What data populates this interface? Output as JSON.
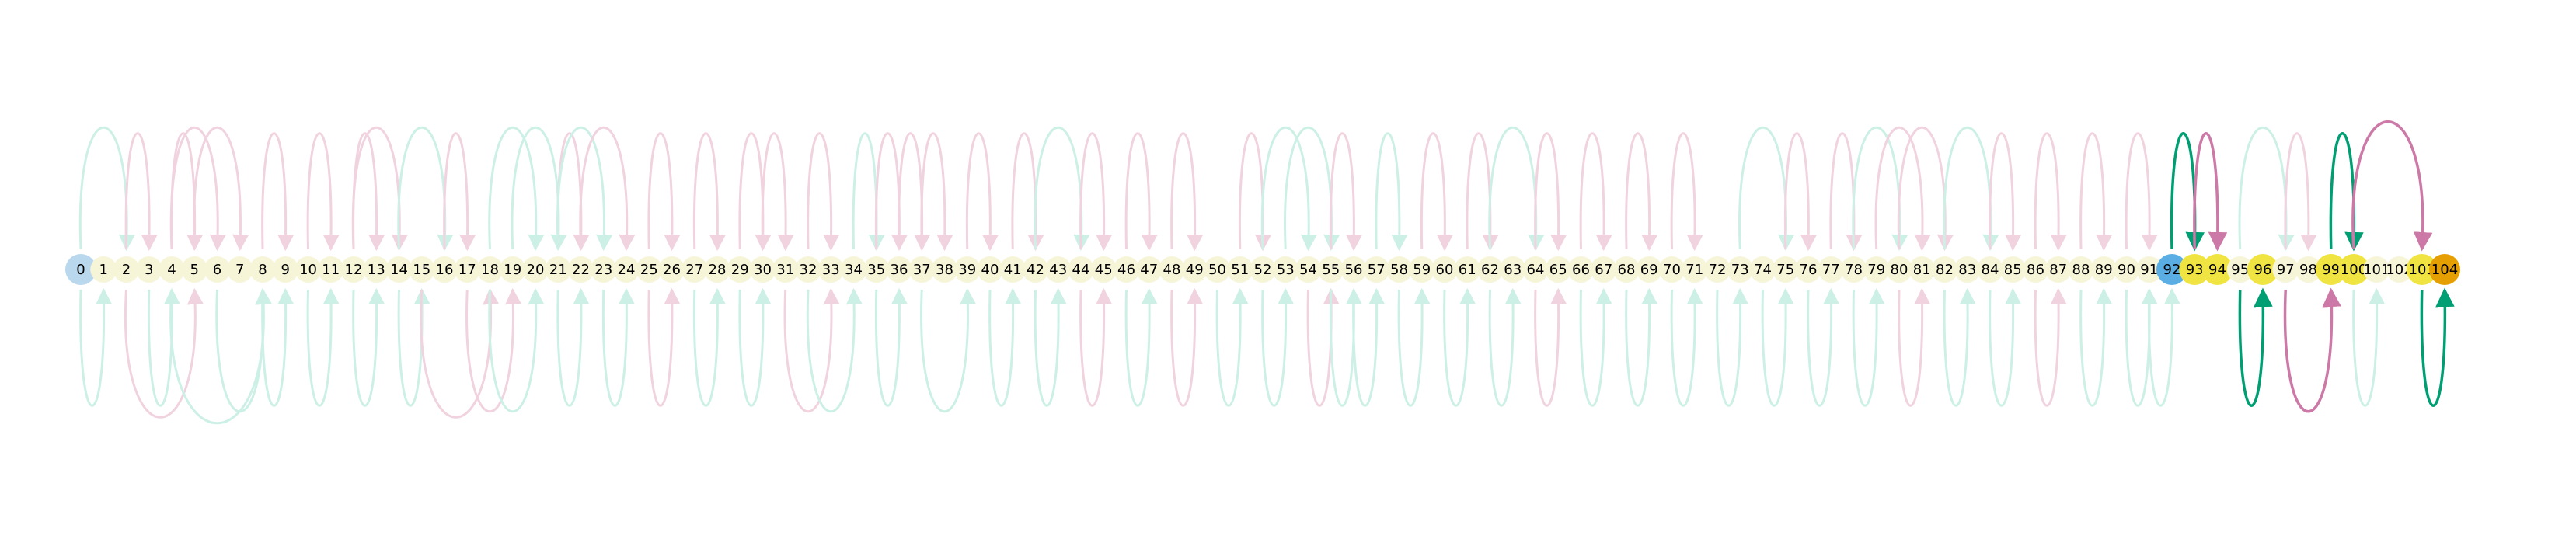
{
  "node_labels": [
    "0",
    "1",
    "2",
    "3",
    "4",
    "5",
    "6",
    "7",
    "8",
    "9",
    "10",
    "11",
    "12",
    "13",
    "14",
    "15",
    "16",
    "17",
    "18",
    "19",
    "20",
    "21",
    "22",
    "23",
    "24",
    "25",
    "26",
    "27",
    "28",
    "29",
    "30",
    "31",
    "32",
    "33",
    "34",
    "35",
    "36",
    "37",
    "38",
    "39",
    "40",
    "41",
    "42",
    "43",
    "44",
    "45",
    "46",
    "47",
    "48",
    "49",
    "50",
    "51",
    "52",
    "53",
    "54",
    "55",
    "56",
    "57",
    "58",
    "59",
    "60",
    "61",
    "62",
    "63",
    "64",
    "65",
    "66",
    "67",
    "68",
    "69",
    "70",
    "71",
    "72",
    "73",
    "74",
    "75",
    "76",
    "77",
    "78",
    "79",
    "80",
    "81",
    "82",
    "83",
    "84",
    "85",
    "86",
    "87",
    "88",
    "89",
    "90",
    "91",
    "92",
    "93",
    "94",
    "95",
    "96",
    "97",
    "98",
    "99",
    "100",
    "101",
    "102",
    "103",
    "104"
  ],
  "highlighted_nodes": {
    "0": "light-blue",
    "92": "blue",
    "93": "yellow",
    "94": "yellow",
    "96": "yellow",
    "99": "yellow",
    "100": "yellow",
    "103": "yellow",
    "104": "orange"
  },
  "colors": {
    "default_node": "#f7f5d8",
    "light-blue": "#b9d8ee",
    "blue": "#5aaee3",
    "yellow": "#f0e442",
    "orange": "#e69f00",
    "faded_green": "#cdf0e6",
    "faded_pink": "#f0d3df",
    "green": "#009e73",
    "pink": "#cc79a7"
  },
  "arcs_above": [
    {
      "from": 0,
      "to": 2,
      "c": "faded_green"
    },
    {
      "from": 2,
      "to": 3,
      "c": "faded_pink"
    },
    {
      "from": 4,
      "to": 5,
      "c": "faded_pink"
    },
    {
      "from": 4,
      "to": 6,
      "c": "faded_pink"
    },
    {
      "from": 5,
      "to": 7,
      "c": "faded_pink"
    },
    {
      "from": 8,
      "to": 9,
      "c": "faded_pink"
    },
    {
      "from": 10,
      "to": 11,
      "c": "faded_pink"
    },
    {
      "from": 12,
      "to": 13,
      "c": "faded_pink"
    },
    {
      "from": 12,
      "to": 14,
      "c": "faded_pink"
    },
    {
      "from": 14,
      "to": 16,
      "c": "faded_green"
    },
    {
      "from": 16,
      "to": 17,
      "c": "faded_pink"
    },
    {
      "from": 18,
      "to": 20,
      "c": "faded_green"
    },
    {
      "from": 19,
      "to": 21,
      "c": "faded_green"
    },
    {
      "from": 21,
      "to": 22,
      "c": "faded_pink"
    },
    {
      "from": 21,
      "to": 23,
      "c": "faded_green"
    },
    {
      "from": 22,
      "to": 24,
      "c": "faded_pink"
    },
    {
      "from": 25,
      "to": 26,
      "c": "faded_pink"
    },
    {
      "from": 27,
      "to": 28,
      "c": "faded_pink"
    },
    {
      "from": 29,
      "to": 30,
      "c": "faded_pink"
    },
    {
      "from": 30,
      "to": 31,
      "c": "faded_pink"
    },
    {
      "from": 32,
      "to": 33,
      "c": "faded_pink"
    },
    {
      "from": 34,
      "to": 35,
      "c": "faded_green"
    },
    {
      "from": 35,
      "to": 36,
      "c": "faded_pink"
    },
    {
      "from": 36,
      "to": 37,
      "c": "faded_pink"
    },
    {
      "from": 37,
      "to": 38,
      "c": "faded_pink"
    },
    {
      "from": 39,
      "to": 40,
      "c": "faded_pink"
    },
    {
      "from": 41,
      "to": 42,
      "c": "faded_pink"
    },
    {
      "from": 42,
      "to": 44,
      "c": "faded_green"
    },
    {
      "from": 44,
      "to": 45,
      "c": "faded_pink"
    },
    {
      "from": 46,
      "to": 47,
      "c": "faded_pink"
    },
    {
      "from": 48,
      "to": 49,
      "c": "faded_pink"
    },
    {
      "from": 51,
      "to": 52,
      "c": "faded_pink"
    },
    {
      "from": 52,
      "to": 54,
      "c": "faded_green"
    },
    {
      "from": 53,
      "to": 55,
      "c": "faded_green"
    },
    {
      "from": 55,
      "to": 56,
      "c": "faded_pink"
    },
    {
      "from": 57,
      "to": 58,
      "c": "faded_green"
    },
    {
      "from": 59,
      "to": 60,
      "c": "faded_pink"
    },
    {
      "from": 61,
      "to": 62,
      "c": "faded_pink"
    },
    {
      "from": 62,
      "to": 64,
      "c": "faded_green"
    },
    {
      "from": 64,
      "to": 65,
      "c": "faded_pink"
    },
    {
      "from": 66,
      "to": 67,
      "c": "faded_pink"
    },
    {
      "from": 68,
      "to": 69,
      "c": "faded_pink"
    },
    {
      "from": 70,
      "to": 71,
      "c": "faded_pink"
    },
    {
      "from": 73,
      "to": 75,
      "c": "faded_green"
    },
    {
      "from": 75,
      "to": 76,
      "c": "faded_pink"
    },
    {
      "from": 77,
      "to": 78,
      "c": "faded_pink"
    },
    {
      "from": 78,
      "to": 80,
      "c": "faded_green"
    },
    {
      "from": 79,
      "to": 81,
      "c": "faded_pink"
    },
    {
      "from": 80,
      "to": 82,
      "c": "faded_pink"
    },
    {
      "from": 82,
      "to": 84,
      "c": "faded_green"
    },
    {
      "from": 84,
      "to": 85,
      "c": "faded_pink"
    },
    {
      "from": 86,
      "to": 87,
      "c": "faded_pink"
    },
    {
      "from": 88,
      "to": 89,
      "c": "faded_pink"
    },
    {
      "from": 90,
      "to": 91,
      "c": "faded_pink"
    },
    {
      "from": 95,
      "to": 97,
      "c": "faded_green"
    },
    {
      "from": 97,
      "to": 98,
      "c": "faded_pink"
    },
    {
      "from": 92,
      "to": 93,
      "c": "green"
    },
    {
      "from": 93,
      "to": 94,
      "c": "pink"
    },
    {
      "from": 99,
      "to": 100,
      "c": "green"
    },
    {
      "from": 100,
      "to": 103,
      "c": "pink"
    }
  ],
  "arcs_below": [
    {
      "from": 0,
      "to": 1,
      "c": "faded_green"
    },
    {
      "from": 2,
      "to": 5,
      "c": "faded_pink"
    },
    {
      "from": 3,
      "to": 4,
      "c": "faded_green"
    },
    {
      "from": 4,
      "to": 8,
      "c": "faded_green"
    },
    {
      "from": 6,
      "to": 8,
      "c": "faded_green"
    },
    {
      "from": 8,
      "to": 9,
      "c": "faded_green"
    },
    {
      "from": 10,
      "to": 11,
      "c": "faded_green"
    },
    {
      "from": 12,
      "to": 13,
      "c": "faded_green"
    },
    {
      "from": 14,
      "to": 15,
      "c": "faded_green"
    },
    {
      "from": 15,
      "to": 18,
      "c": "faded_pink"
    },
    {
      "from": 17,
      "to": 19,
      "c": "faded_pink"
    },
    {
      "from": 18,
      "to": 20,
      "c": "faded_green"
    },
    {
      "from": 21,
      "to": 22,
      "c": "faded_green"
    },
    {
      "from": 23,
      "to": 24,
      "c": "faded_green"
    },
    {
      "from": 25,
      "to": 26,
      "c": "faded_pink"
    },
    {
      "from": 27,
      "to": 28,
      "c": "faded_green"
    },
    {
      "from": 29,
      "to": 30,
      "c": "faded_green"
    },
    {
      "from": 31,
      "to": 33,
      "c": "faded_pink"
    },
    {
      "from": 32,
      "to": 34,
      "c": "faded_green"
    },
    {
      "from": 35,
      "to": 36,
      "c": "faded_green"
    },
    {
      "from": 37,
      "to": 39,
      "c": "faded_green"
    },
    {
      "from": 40,
      "to": 41,
      "c": "faded_green"
    },
    {
      "from": 42,
      "to": 43,
      "c": "faded_green"
    },
    {
      "from": 44,
      "to": 45,
      "c": "faded_pink"
    },
    {
      "from": 46,
      "to": 47,
      "c": "faded_green"
    },
    {
      "from": 48,
      "to": 49,
      "c": "faded_pink"
    },
    {
      "from": 50,
      "to": 51,
      "c": "faded_green"
    },
    {
      "from": 52,
      "to": 53,
      "c": "faded_green"
    },
    {
      "from": 54,
      "to": 55,
      "c": "faded_pink"
    },
    {
      "from": 55,
      "to": 56,
      "c": "faded_green"
    },
    {
      "from": 56,
      "to": 57,
      "c": "faded_green"
    },
    {
      "from": 58,
      "to": 59,
      "c": "faded_green"
    },
    {
      "from": 60,
      "to": 61,
      "c": "faded_green"
    },
    {
      "from": 62,
      "to": 63,
      "c": "faded_green"
    },
    {
      "from": 64,
      "to": 65,
      "c": "faded_pink"
    },
    {
      "from": 66,
      "to": 67,
      "c": "faded_green"
    },
    {
      "from": 68,
      "to": 69,
      "c": "faded_green"
    },
    {
      "from": 70,
      "to": 71,
      "c": "faded_green"
    },
    {
      "from": 72,
      "to": 73,
      "c": "faded_green"
    },
    {
      "from": 74,
      "to": 75,
      "c": "faded_green"
    },
    {
      "from": 76,
      "to": 77,
      "c": "faded_green"
    },
    {
      "from": 78,
      "to": 79,
      "c": "faded_green"
    },
    {
      "from": 80,
      "to": 81,
      "c": "faded_pink"
    },
    {
      "from": 82,
      "to": 83,
      "c": "faded_green"
    },
    {
      "from": 84,
      "to": 85,
      "c": "faded_green"
    },
    {
      "from": 86,
      "to": 87,
      "c": "faded_pink"
    },
    {
      "from": 88,
      "to": 89,
      "c": "faded_green"
    },
    {
      "from": 90,
      "to": 91,
      "c": "faded_green"
    },
    {
      "from": 91,
      "to": 92,
      "c": "faded_green"
    },
    {
      "from": 95,
      "to": 96,
      "c": "green"
    },
    {
      "from": 97,
      "to": 99,
      "c": "pink"
    },
    {
      "from": 100,
      "to": 101,
      "c": "faded_green"
    },
    {
      "from": 103,
      "to": 104,
      "c": "green"
    }
  ]
}
